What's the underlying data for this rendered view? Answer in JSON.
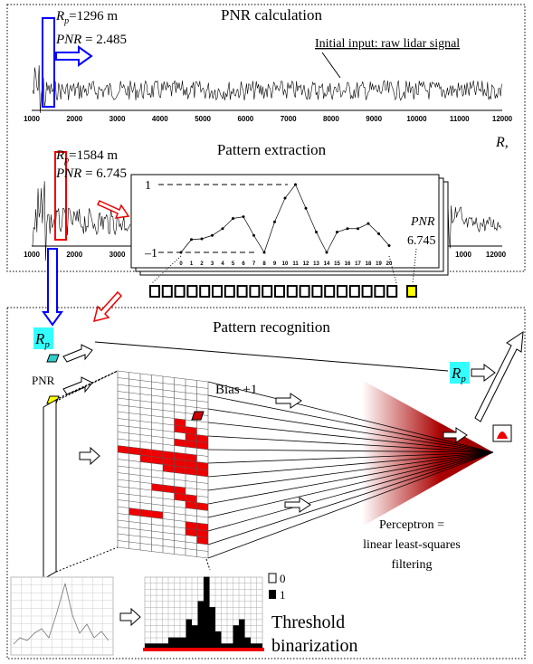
{
  "panel_top": {
    "title_calc": "PNR calculation",
    "rp1": {
      "symbol": "R",
      "subscript": "p",
      "rest": "=1296 m"
    },
    "pnr1": {
      "symbol": "PNR",
      "rest": " = 2.485"
    },
    "input_note": "Initial input: raw lidar signal",
    "axis1_ticks": [
      1000,
      2000,
      3000,
      4000,
      5000,
      6000,
      7000,
      8000,
      9000,
      10000,
      11000,
      12000
    ],
    "axis_label": "R,",
    "title_extract": "Pattern extraction",
    "rp2": {
      "symbol": "R",
      "subscript": "p",
      "rest": "=1584 m"
    },
    "pnr2": {
      "symbol": "PNR",
      "rest": " = 6.745"
    },
    "axis2_ticks_left": [
      1000,
      2000,
      3000
    ],
    "axis2_ticks_right": [
      1000,
      12000
    ],
    "inset": {
      "y_top": "1",
      "y_bottom": "–1",
      "x_ticks": [
        0,
        1,
        2,
        3,
        4,
        5,
        6,
        7,
        8,
        9,
        10,
        11,
        12,
        13,
        14,
        15,
        16,
        17,
        18,
        19,
        20
      ],
      "pattern_values": [
        -1,
        -0.62,
        -0.6,
        -0.5,
        -0.3,
        0.0,
        0.05,
        -0.5,
        -1,
        -0.1,
        0.6,
        1,
        0.3,
        -0.4,
        -1,
        -0.4,
        -0.3,
        -0.3,
        -0.15,
        -0.45,
        -0.8
      ],
      "pnr_label": "PNR",
      "pnr_value": "6.745"
    }
  },
  "panel_bottom": {
    "title": "Pattern recognition",
    "rp_in": {
      "symbol": "R",
      "subscript": "p"
    },
    "pnr_in": "PNR",
    "bias": "Bias +1",
    "rp_out": {
      "symbol": "R",
      "subscript": "p"
    },
    "perceptron": [
      "Perceptron =",
      "linear least-squares",
      "filtering"
    ],
    "legend": [
      "0",
      "1"
    ],
    "threshold": [
      "Threshold",
      "binarization"
    ]
  }
}
